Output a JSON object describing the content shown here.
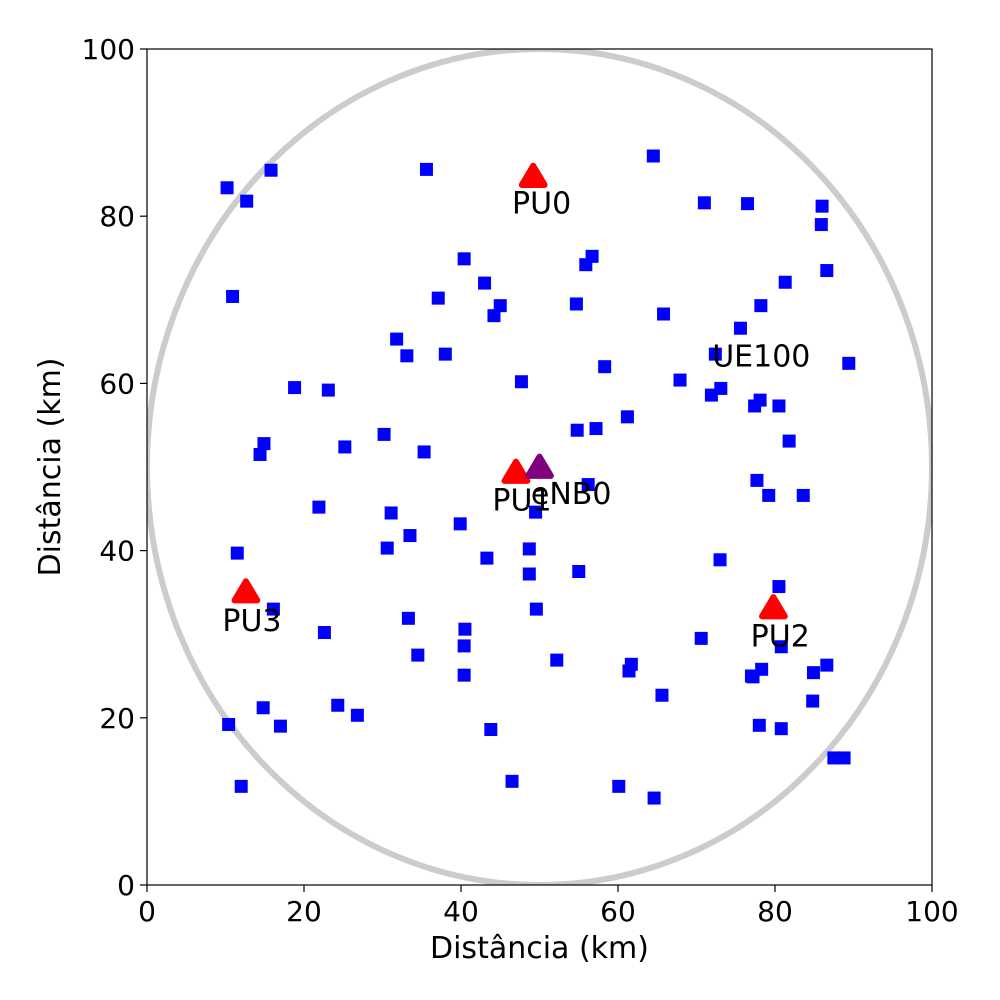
{
  "chart_data": {
    "type": "scatter",
    "title": "",
    "xlabel": "Distância (km)",
    "ylabel": "Distância (km)",
    "xlim": [
      0,
      100
    ],
    "ylim": [
      0,
      100
    ],
    "xticks": [
      "0",
      "20",
      "40",
      "60",
      "80",
      "100"
    ],
    "yticks": [
      "0",
      "20",
      "40",
      "60",
      "80",
      "100"
    ],
    "grid": false,
    "coverage_circle": {
      "center": [
        50,
        50
      ],
      "radius": 50,
      "color": "#cccccc"
    },
    "series": [
      {
        "marker": "square",
        "color": "#0000ff",
        "points": [
          [
            10.2,
            83.4
          ],
          [
            12.7,
            81.8
          ],
          [
            15.8,
            85.5
          ],
          [
            35.6,
            85.6
          ],
          [
            64.5,
            87.2
          ],
          [
            71.0,
            81.6
          ],
          [
            76.5,
            81.5
          ],
          [
            86.0,
            81.2
          ],
          [
            85.9,
            79.0
          ],
          [
            86.6,
            73.5
          ],
          [
            81.3,
            72.1
          ],
          [
            78.2,
            69.3
          ],
          [
            75.6,
            66.6
          ],
          [
            65.8,
            68.3
          ],
          [
            56.7,
            75.2
          ],
          [
            55.9,
            74.2
          ],
          [
            54.7,
            69.5
          ],
          [
            45.0,
            69.3
          ],
          [
            44.2,
            68.1
          ],
          [
            43.0,
            72.0
          ],
          [
            40.4,
            74.9
          ],
          [
            37.1,
            70.2
          ],
          [
            10.9,
            70.4
          ],
          [
            31.8,
            65.3
          ],
          [
            33.1,
            63.3
          ],
          [
            38.0,
            63.5
          ],
          [
            18.8,
            59.5
          ],
          [
            23.1,
            59.2
          ],
          [
            47.7,
            60.2
          ],
          [
            58.3,
            62.0
          ],
          [
            67.9,
            60.4
          ],
          [
            72.4,
            63.5
          ],
          [
            89.4,
            62.4
          ],
          [
            73.1,
            59.4
          ],
          [
            71.9,
            58.6
          ],
          [
            77.4,
            57.3
          ],
          [
            78.1,
            58.0
          ],
          [
            80.5,
            57.3
          ],
          [
            81.8,
            53.1
          ],
          [
            61.2,
            56.0
          ],
          [
            57.2,
            54.6
          ],
          [
            54.8,
            54.4
          ],
          [
            30.2,
            53.9
          ],
          [
            35.3,
            51.8
          ],
          [
            25.2,
            52.4
          ],
          [
            14.9,
            52.8
          ],
          [
            14.4,
            51.5
          ],
          [
            77.7,
            48.4
          ],
          [
            79.2,
            46.6
          ],
          [
            83.6,
            46.6
          ],
          [
            56.2,
            47.9
          ],
          [
            49.5,
            44.6
          ],
          [
            21.9,
            45.2
          ],
          [
            31.1,
            44.5
          ],
          [
            39.9,
            43.2
          ],
          [
            33.5,
            41.8
          ],
          [
            30.6,
            40.3
          ],
          [
            11.5,
            39.7
          ],
          [
            43.3,
            39.1
          ],
          [
            48.7,
            40.2
          ],
          [
            48.7,
            37.2
          ],
          [
            55.0,
            37.5
          ],
          [
            73.0,
            38.9
          ],
          [
            80.5,
            35.7
          ],
          [
            16.1,
            33.0
          ],
          [
            49.6,
            33.0
          ],
          [
            33.3,
            31.9
          ],
          [
            40.5,
            30.6
          ],
          [
            40.4,
            28.6
          ],
          [
            22.6,
            30.2
          ],
          [
            34.5,
            27.5
          ],
          [
            52.2,
            26.9
          ],
          [
            61.7,
            26.4
          ],
          [
            61.4,
            25.6
          ],
          [
            40.4,
            25.1
          ],
          [
            70.6,
            29.5
          ],
          [
            80.8,
            28.5
          ],
          [
            77.0,
            25.0
          ],
          [
            78.3,
            25.8
          ],
          [
            77.2,
            24.9
          ],
          [
            86.6,
            26.3
          ],
          [
            84.9,
            25.4
          ],
          [
            65.6,
            22.7
          ],
          [
            24.3,
            21.5
          ],
          [
            26.8,
            20.3
          ],
          [
            14.8,
            21.2
          ],
          [
            10.4,
            19.2
          ],
          [
            17.0,
            19.0
          ],
          [
            43.8,
            18.6
          ],
          [
            78.0,
            19.1
          ],
          [
            80.8,
            18.7
          ],
          [
            84.8,
            22.0
          ],
          [
            87.5,
            15.2
          ],
          [
            88.8,
            15.2
          ],
          [
            46.5,
            12.4
          ],
          [
            60.1,
            11.8
          ],
          [
            64.6,
            10.4
          ],
          [
            12.0,
            11.8
          ]
        ]
      },
      {
        "marker": "triangle",
        "color": "#ff0000",
        "points": [
          [
            49.2,
            84.6
          ],
          [
            47.0,
            49.2
          ],
          [
            79.8,
            33.0
          ],
          [
            12.6,
            34.9
          ]
        ]
      },
      {
        "marker": "triangle",
        "color": "#800080",
        "points": [
          [
            50.0,
            49.8
          ]
        ]
      }
    ],
    "annotations": [
      {
        "text": "PU0",
        "x": 46.5,
        "y": 80.3
      },
      {
        "text": "PU1",
        "x": 44.0,
        "y": 44.8
      },
      {
        "text": "eNB0",
        "x": 48.9,
        "y": 45.6
      },
      {
        "text": "PU2",
        "x": 76.9,
        "y": 28.5
      },
      {
        "text": "PU3",
        "x": 9.6,
        "y": 30.4
      },
      {
        "text": "UE100",
        "x": 72.0,
        "y": 62.0
      }
    ]
  }
}
